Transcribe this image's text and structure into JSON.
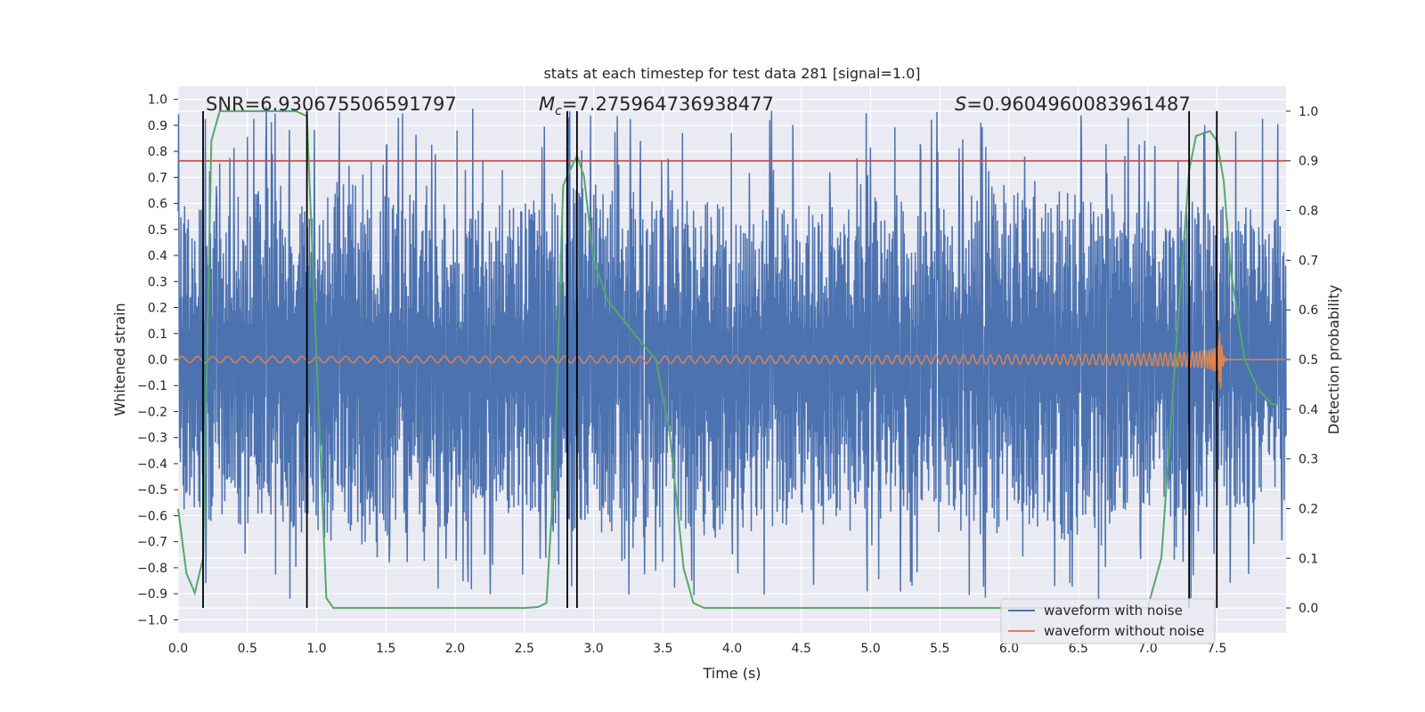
{
  "chart_data": {
    "type": "line",
    "title": "stats at each timestep for test data 281 [signal=1.0]",
    "xlabel": "Time (s)",
    "ylabel": "Whitened strain",
    "y2label": "Detection probability",
    "xlim": [
      0.0,
      8.0
    ],
    "ylim": [
      -1.05,
      1.05
    ],
    "y2lim": [
      -0.05,
      1.05
    ],
    "xticks": [
      "0.0",
      "0.5",
      "1.0",
      "1.5",
      "2.0",
      "2.5",
      "3.0",
      "3.5",
      "4.0",
      "4.5",
      "5.0",
      "5.5",
      "6.0",
      "6.5",
      "7.0",
      "7.5"
    ],
    "yticks": [
      "1.0",
      "0.9",
      "0.8",
      "0.7",
      "0.6",
      "0.5",
      "0.4",
      "0.3",
      "0.2",
      "0.1",
      "0.0",
      "−0.1",
      "−0.2",
      "−0.3",
      "−0.4",
      "−0.5",
      "−0.6",
      "−0.7",
      "−0.8",
      "−0.9",
      "−1.0"
    ],
    "y2ticks": [
      "1.0",
      "0.9",
      "0.8",
      "0.7",
      "0.6",
      "0.5",
      "0.4",
      "0.3",
      "0.2",
      "0.1",
      "0.0"
    ],
    "annotations": {
      "snr": "SNR=6.930675506591797",
      "mc_symbol": "M",
      "mc_sub": "c",
      "mc_value": "=7.275964736938477",
      "s_symbol": "S",
      "s_value": "=0.9604960083961487"
    },
    "threshold_y2": 0.9,
    "vlines_x": [
      0.18,
      0.93,
      2.81,
      2.88,
      7.3,
      7.5
    ],
    "noise_envelope": {
      "t": [
        0.0,
        0.5,
        1.0,
        1.5,
        2.0,
        2.5,
        3.0,
        3.5,
        4.0,
        4.5,
        5.0,
        5.5,
        6.0,
        6.5,
        7.0,
        7.5,
        8.0
      ],
      "upper": [
        0.6,
        0.65,
        0.7,
        0.65,
        0.6,
        0.62,
        0.68,
        0.62,
        0.6,
        0.62,
        0.58,
        0.6,
        0.7,
        0.65,
        0.55,
        0.6,
        0.58
      ],
      "lower": [
        -0.6,
        -0.65,
        -0.68,
        -0.7,
        -0.65,
        -0.62,
        -0.68,
        -0.65,
        -0.7,
        -0.65,
        -0.6,
        -0.62,
        -0.68,
        -0.7,
        -0.62,
        -0.58,
        -0.55
      ],
      "spike_max": 0.98,
      "spike_min": -0.93
    },
    "clean_waveform": {
      "merger_time": 7.52,
      "amp_start": 0.012,
      "amp_peak": 0.22,
      "ringdown_end": 7.62
    },
    "series": [
      {
        "name": "waveform with noise",
        "color": "#4c72b0",
        "axis": "left"
      },
      {
        "name": "waveform without noise",
        "color": "#dd8452",
        "axis": "left"
      },
      {
        "name": "detection probability",
        "color": "#55a868",
        "axis": "right",
        "x": [
          0.0,
          0.06,
          0.12,
          0.18,
          0.24,
          0.3,
          0.35,
          0.5,
          0.7,
          0.85,
          0.93,
          1.0,
          1.07,
          1.12,
          1.5,
          2.0,
          2.5,
          2.6,
          2.66,
          2.72,
          2.78,
          2.81,
          2.88,
          2.93,
          3.0,
          3.1,
          3.3,
          3.45,
          3.55,
          3.65,
          3.72,
          3.8,
          4.0,
          5.0,
          6.0,
          7.0,
          7.1,
          7.2,
          7.3,
          7.35,
          7.45,
          7.5,
          7.55,
          7.6,
          7.7,
          7.8,
          7.9,
          7.95
        ],
        "y": [
          0.2,
          0.07,
          0.03,
          0.1,
          0.94,
          1.0,
          1.0,
          1.0,
          1.0,
          1.0,
          0.99,
          0.5,
          0.02,
          0.0,
          0.0,
          0.0,
          0.0,
          0.002,
          0.01,
          0.3,
          0.85,
          0.87,
          0.91,
          0.87,
          0.7,
          0.62,
          0.55,
          0.5,
          0.35,
          0.08,
          0.01,
          0.0,
          0.0,
          0.0,
          0.0,
          0.0,
          0.1,
          0.5,
          0.88,
          0.95,
          0.96,
          0.94,
          0.86,
          0.68,
          0.5,
          0.44,
          0.41,
          0.41
        ]
      }
    ],
    "legend": {
      "location": "lower-right",
      "items": [
        "waveform with noise",
        "waveform without noise"
      ]
    }
  }
}
